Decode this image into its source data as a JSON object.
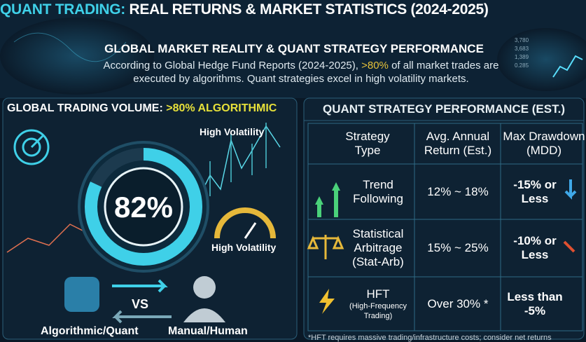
{
  "header": {
    "title_accent": "QUANT TRADING:",
    "title_rest": "REAL RETURNS & MARKET STATISTICS (2024-2025)",
    "subtitle": "GLOBAL MARKET REALITY & QUANT STRATEGY PERFORMANCE",
    "description_start": "According to Global Hedge Fund Reports (2024-2025),",
    "description_highlight": ">80%",
    "description_end": "of all market trades are executed by algorithms. Quant strategies excel in high volatility markets.",
    "ticker": [
      "3,780",
      "3,683",
      "1,389",
      "0.285"
    ]
  },
  "left": {
    "title_start": "GLOBAL TRADING VOLUME:",
    "title_highlight": ">80% ALGORITHMIC",
    "donut": {
      "value": 82,
      "label": "82%"
    },
    "volatility_top": "High Volatility",
    "volatility_gauge": "High Volatility",
    "vs": "VS",
    "algo_label": "Algorithmic/Quant",
    "human_label": "Manual/Human"
  },
  "table": {
    "title": "QUANT STRATEGY PERFORMANCE (EST.)",
    "headers": [
      "Strategy Type",
      "Avg. Annual Return (Est.)",
      "Max Drawdown (MDD)"
    ],
    "rows": [
      {
        "strategy": "Trend Following",
        "note": null,
        "return": "12% ~ 18%",
        "drawdown": "-15% or Less"
      },
      {
        "strategy": "Statistical Arbitrage (Stat-Arb)",
        "note": null,
        "return": "15% ~ 25%",
        "drawdown": "-10% or Less"
      },
      {
        "strategy": "HFT",
        "note": "(High-Frequency Trading)",
        "return": "Over 30% *",
        "drawdown": "Less than -5%"
      }
    ],
    "footnote": "*HFT requires massive trading/infrastructure costs; consider net returns"
  }
}
